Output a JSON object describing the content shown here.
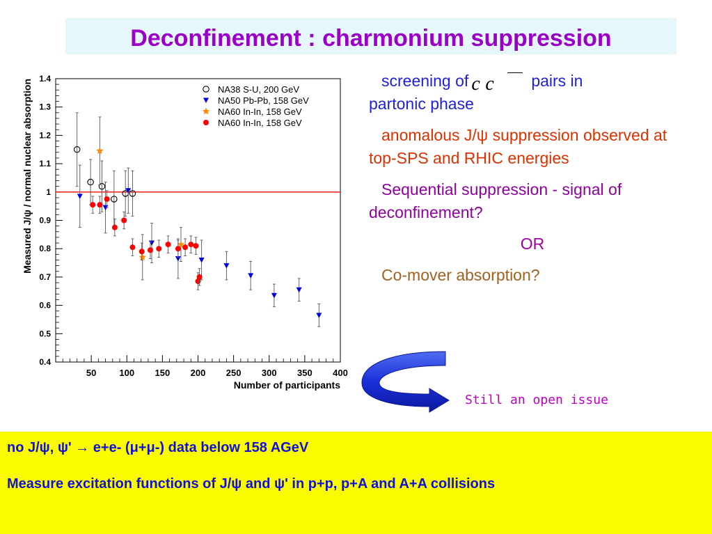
{
  "title": "Deconfinement : charmonium suppression",
  "bullets": {
    "b1_pre": "screening of",
    "b1_cc": "c c",
    "b1_post": "pairs in",
    "b1_line2": "partonic phase",
    "b2": "anomalous J/ψ suppression observed  at top-SPS and RHIC energies",
    "b3": "Sequential suppression - signal of deconfinement?",
    "b4": "OR",
    "b5": "Co-mover absorption?"
  },
  "open_issue": "Still an open issue",
  "bottom": {
    "line1": "no J/ψ, ψ' → e+e- (μ+μ-)  data  below 158 AGeV",
    "line2": "Measure excitation functions of J/ψ and ψ' in p+p, p+A and A+A collisions"
  },
  "colors": {
    "title": "#9a00c8",
    "na38": "#000000",
    "na50": "#0000e0",
    "na60_star": "#ff8c00",
    "na60_dot": "#ff0000",
    "reference_line": "#ff0000",
    "bottom_band": "#fbfb00"
  },
  "chart_data": {
    "type": "scatter",
    "xlabel": "Number of participants",
    "ylabel": "Measured J/ψ / normal nuclear absorption",
    "xlim": [
      0,
      400
    ],
    "ylim": [
      0.4,
      1.4
    ],
    "xticks": [
      50,
      100,
      150,
      200,
      250,
      300,
      350,
      400
    ],
    "yticks": [
      0.4,
      0.5,
      0.6,
      0.7,
      0.8,
      0.9,
      1,
      1.1,
      1.2,
      1.3,
      1.4
    ],
    "ytick_labels": [
      "0.4",
      "0.5",
      "0.6",
      "0.7",
      "0.8",
      "0.9",
      "1",
      "1.1",
      "1.2",
      "1.3",
      "1.4"
    ],
    "reference_line_y": 1.0,
    "legend_position": "top-right",
    "series": [
      {
        "name": "NA38 S-U, 200 GeV",
        "marker": "open-circle",
        "points": [
          [
            30,
            1.15,
            0.13
          ],
          [
            49,
            1.035,
            0.08
          ],
          [
            65,
            1.02,
            0.09
          ],
          [
            82,
            0.975,
            0.1
          ],
          [
            98,
            0.995,
            0.08
          ],
          [
            108,
            0.995,
            0.08
          ]
        ]
      },
      {
        "name": "NA50 Pb-Pb, 158 GeV",
        "marker": "triangle-down",
        "points": [
          [
            34,
            0.985,
            0.11
          ],
          [
            70,
            0.945,
            0.09
          ],
          [
            102,
            1.005,
            0.08
          ],
          [
            135,
            0.82,
            0.07
          ],
          [
            172,
            0.765,
            0.07
          ],
          [
            205,
            0.76,
            0.07
          ],
          [
            240,
            0.74,
            0.05
          ],
          [
            274,
            0.705,
            0.05
          ],
          [
            307,
            0.635,
            0.04
          ],
          [
            342,
            0.655,
            0.04
          ],
          [
            370,
            0.565,
            0.04
          ]
        ]
      },
      {
        "name": "NA60 In-In, 158 GeV",
        "marker": "star",
        "points": [
          [
            62,
            1.145,
            0.12
          ],
          [
            122,
            0.77,
            0.08
          ],
          [
            176,
            0.815,
            0.06
          ]
        ]
      },
      {
        "name": "NA60 In-In, 158 GeV",
        "marker": "filled-circle",
        "points": [
          [
            52,
            0.955,
            0.03
          ],
          [
            62,
            0.955,
            0.03
          ],
          [
            72,
            0.975,
            0.03
          ],
          [
            83,
            0.875,
            0.03
          ],
          [
            96,
            0.9,
            0.03
          ],
          [
            108,
            0.805,
            0.03
          ],
          [
            121,
            0.79,
            0.03
          ],
          [
            133,
            0.795,
            0.03
          ],
          [
            145,
            0.8,
            0.03
          ],
          [
            158,
            0.815,
            0.03
          ],
          [
            172,
            0.8,
            0.03
          ],
          [
            182,
            0.805,
            0.03
          ],
          [
            190,
            0.815,
            0.03
          ],
          [
            197,
            0.81,
            0.03
          ],
          [
            200,
            0.685,
            0.03
          ],
          [
            202,
            0.7,
            0.03
          ]
        ]
      }
    ]
  }
}
